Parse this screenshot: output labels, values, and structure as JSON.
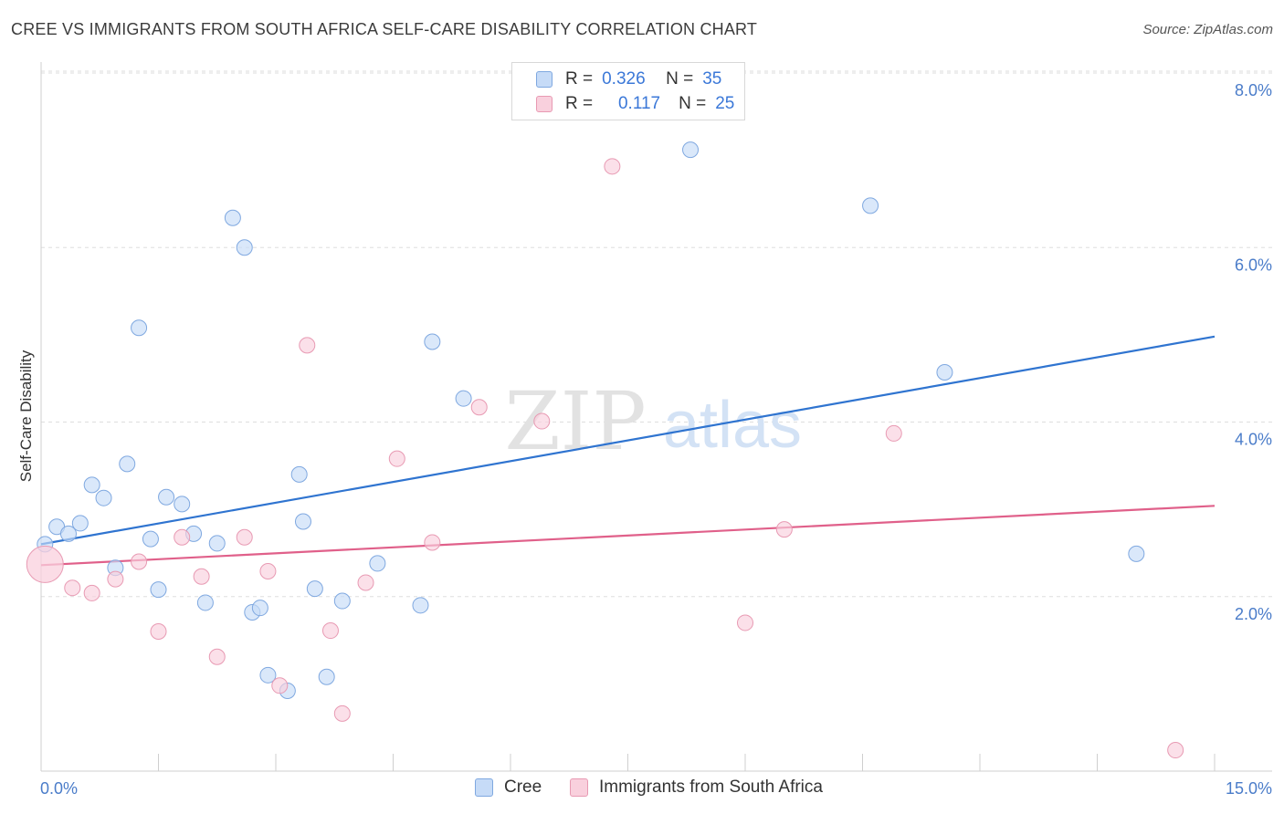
{
  "header": {
    "title": "CREE VS IMMIGRANTS FROM SOUTH AFRICA SELF-CARE DISABILITY CORRELATION CHART",
    "source": "Source: ZipAtlas.com"
  },
  "watermark": {
    "zip": "ZIP",
    "atlas": "atlas"
  },
  "legend": {
    "rows": [
      {
        "r_label": "R =",
        "r_value": "0.326",
        "n_label": "N =",
        "n_value": "35",
        "color": "#b9d3f5",
        "border": "#7fa8e0"
      },
      {
        "r_label": "R =",
        "r_value": "0.117",
        "n_label": "N =",
        "n_value": "25",
        "color": "#f8c7d6",
        "border": "#e89ab3"
      }
    ]
  },
  "bottom_legend": {
    "items": [
      {
        "label": "Cree",
        "color": "#b9d3f5",
        "border": "#7fa8e0"
      },
      {
        "label": "Immigrants from South Africa",
        "color": "#f8c7d6",
        "border": "#e89ab3"
      }
    ]
  },
  "chart_data": {
    "type": "scatter",
    "title": "CREE VS IMMIGRANTS FROM SOUTH AFRICA SELF-CARE DISABILITY CORRELATION CHART",
    "xlabel": "",
    "ylabel": "Self-Care Disability",
    "xlim": [
      0,
      15
    ],
    "ylim": [
      0.0,
      8.0
    ],
    "x_tick_labels": [
      "0.0%",
      "15.0%"
    ],
    "y_ticks": [
      2.0,
      4.0,
      6.0,
      8.0
    ],
    "y_tick_labels": [
      "2.0%",
      "4.0%",
      "6.0%",
      "8.0%"
    ],
    "grid": "horizontal dashed",
    "legend_position": "top-center",
    "series": [
      {
        "name": "Cree",
        "color": "#7fa8e0",
        "fill": "#c6dbf7",
        "trend_color": "#2f74d0",
        "trend": {
          "x0": 0,
          "y0": 2.6,
          "x1": 15,
          "y1": 4.98
        },
        "points": [
          [
            0.05,
            2.6
          ],
          [
            0.2,
            2.8
          ],
          [
            0.35,
            2.72
          ],
          [
            0.5,
            2.84
          ],
          [
            0.65,
            3.28
          ],
          [
            0.8,
            3.13
          ],
          [
            0.95,
            2.33
          ],
          [
            1.1,
            3.52
          ],
          [
            1.25,
            5.08
          ],
          [
            1.4,
            2.66
          ],
          [
            1.5,
            2.08
          ],
          [
            1.6,
            3.14
          ],
          [
            1.8,
            3.06
          ],
          [
            1.95,
            2.72
          ],
          [
            2.1,
            1.93
          ],
          [
            2.25,
            2.61
          ],
          [
            2.45,
            6.34
          ],
          [
            2.6,
            6.0
          ],
          [
            2.7,
            1.82
          ],
          [
            2.8,
            1.87
          ],
          [
            2.9,
            1.1
          ],
          [
            3.15,
            0.92
          ],
          [
            3.3,
            3.4
          ],
          [
            3.35,
            2.86
          ],
          [
            3.5,
            2.09
          ],
          [
            3.65,
            1.08
          ],
          [
            3.85,
            1.95
          ],
          [
            4.3,
            2.38
          ],
          [
            4.85,
            1.9
          ],
          [
            5.0,
            4.92
          ],
          [
            5.4,
            4.27
          ],
          [
            8.3,
            7.12
          ],
          [
            10.6,
            6.48
          ],
          [
            11.55,
            4.57
          ],
          [
            14.0,
            2.49
          ]
        ]
      },
      {
        "name": "Immigrants from South Africa",
        "color": "#e89ab3",
        "fill": "#f9d0dd",
        "trend_color": "#e0608a",
        "trend": {
          "x0": 0,
          "y0": 2.36,
          "x1": 15,
          "y1": 3.04
        },
        "points": [
          [
            0.05,
            2.37
          ],
          [
            0.4,
            2.1
          ],
          [
            0.65,
            2.04
          ],
          [
            0.95,
            2.2
          ],
          [
            1.25,
            2.4
          ],
          [
            1.5,
            1.6
          ],
          [
            1.8,
            2.68
          ],
          [
            2.05,
            2.23
          ],
          [
            2.25,
            1.31
          ],
          [
            2.6,
            2.68
          ],
          [
            2.9,
            2.29
          ],
          [
            3.05,
            0.98
          ],
          [
            3.4,
            4.88
          ],
          [
            3.7,
            1.61
          ],
          [
            3.85,
            0.66
          ],
          [
            4.15,
            2.16
          ],
          [
            4.55,
            3.58
          ],
          [
            5.0,
            2.62
          ],
          [
            5.6,
            4.17
          ],
          [
            6.4,
            4.01
          ],
          [
            7.3,
            6.93
          ],
          [
            9.0,
            1.7
          ],
          [
            9.5,
            2.77
          ],
          [
            10.9,
            3.87
          ],
          [
            14.5,
            0.24
          ]
        ]
      }
    ]
  }
}
